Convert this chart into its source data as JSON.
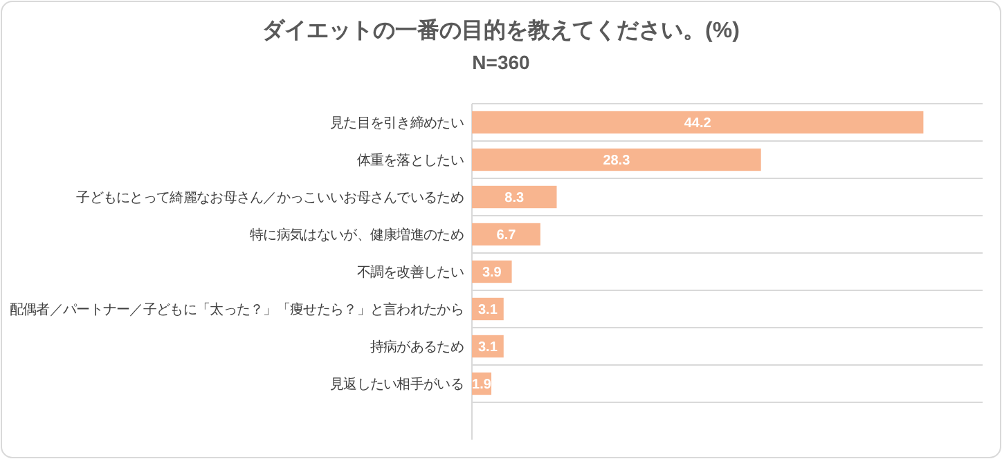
{
  "chart_data": {
    "type": "bar",
    "orientation": "horizontal",
    "title": "ダイエットの一番の目的を教えてください。(%)",
    "subtitle": "N=360",
    "categories": [
      "見た目を引き締めたい",
      "体重を落としたい",
      "子どもにとって綺麗なお母さん／かっこいいお母さんでいるため",
      "特に病気はないが、健康増進のため",
      "不調を改善したい",
      "配偶者／パートナー／子どもに「太った？」「痩せたら？」と言われたから",
      "持病があるため",
      "見返したい相手がいる"
    ],
    "values": [
      44.2,
      28.3,
      8.3,
      6.7,
      3.9,
      3.1,
      3.1,
      1.9
    ],
    "color": "#f8b58f",
    "xlim": [
      0,
      50
    ],
    "data_labels": true,
    "grid": true,
    "tick_labels": "y"
  }
}
